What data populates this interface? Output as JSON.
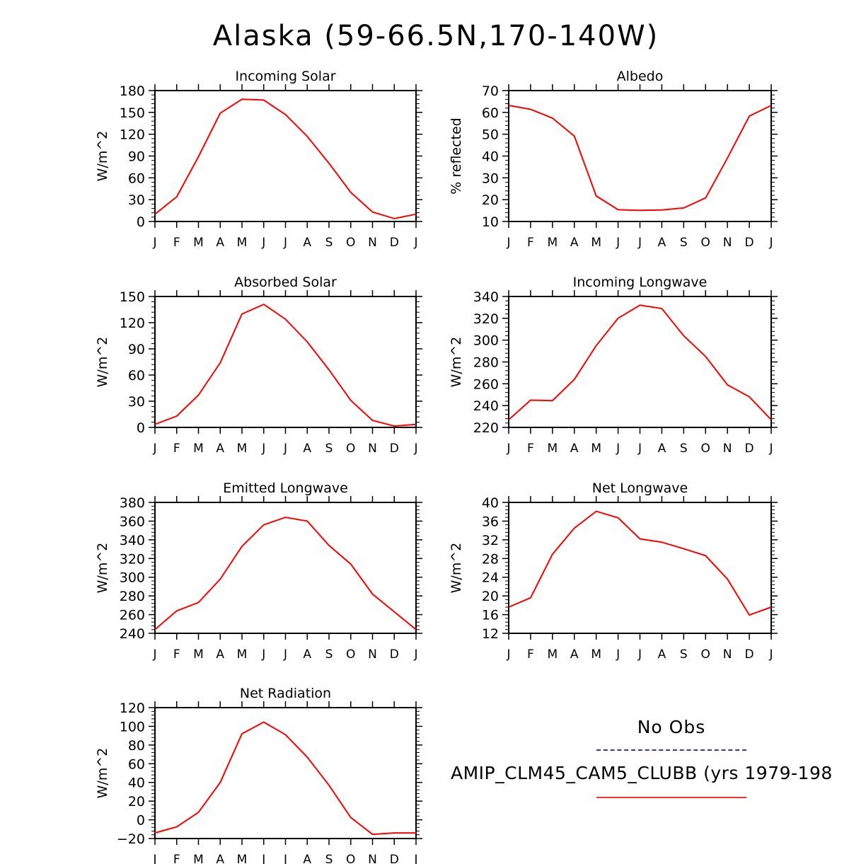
{
  "title": "Alaska (59-66.5N,170-140W)",
  "months": [
    "J",
    "F",
    "M",
    "A",
    "M",
    "J",
    "J",
    "A",
    "S",
    "O",
    "N",
    "D",
    "J"
  ],
  "legend": {
    "obs_label": "No Obs",
    "obs_color": "#3333cc",
    "model_label": "AMIP_CLM45_CAM5_CLUBB (yrs 1979-198",
    "model_color": "#ff0000"
  },
  "chart_data": [
    {
      "type": "line",
      "title": "Incoming Solar",
      "ylabel": "W/m^2",
      "ylim": [
        0,
        180
      ],
      "yticks": [
        0,
        30,
        60,
        90,
        120,
        150,
        180
      ],
      "x": [
        "J",
        "F",
        "M",
        "A",
        "M",
        "J",
        "J",
        "A",
        "S",
        "O",
        "N",
        "D",
        "J"
      ],
      "values": [
        10,
        34,
        89,
        149,
        168,
        167,
        147,
        117,
        80,
        40,
        13,
        4,
        10
      ]
    },
    {
      "type": "line",
      "title": "Albedo",
      "ylabel": "% reflected",
      "ylim": [
        10,
        70
      ],
      "yticks": [
        10,
        20,
        30,
        40,
        50,
        60,
        70
      ],
      "x": [
        "J",
        "F",
        "M",
        "A",
        "M",
        "J",
        "J",
        "A",
        "S",
        "O",
        "N",
        "D",
        "J"
      ],
      "values": [
        63.2,
        61.4,
        57.4,
        49.1,
        21.7,
        15.4,
        15.1,
        15.3,
        16.2,
        20.8,
        39.1,
        58.3,
        63.2
      ]
    },
    {
      "type": "line",
      "title": "Absorbed Solar",
      "ylabel": "W/m^2",
      "ylim": [
        0,
        150
      ],
      "yticks": [
        0,
        30,
        60,
        90,
        120,
        150
      ],
      "x": [
        "J",
        "F",
        "M",
        "A",
        "M",
        "J",
        "J",
        "A",
        "S",
        "O",
        "N",
        "D",
        "J"
      ],
      "values": [
        3.5,
        13,
        37,
        74,
        130,
        141,
        124,
        98,
        66,
        31,
        8,
        1.5,
        3.5
      ]
    },
    {
      "type": "line",
      "title": "Incoming Longwave",
      "ylabel": "W/m^2",
      "ylim": [
        220,
        340
      ],
      "yticks": [
        220,
        240,
        260,
        280,
        300,
        320,
        340
      ],
      "x": [
        "J",
        "F",
        "M",
        "A",
        "M",
        "J",
        "J",
        "A",
        "S",
        "O",
        "N",
        "D",
        "J"
      ],
      "values": [
        227,
        245,
        244.5,
        264,
        295,
        320,
        332,
        329,
        304,
        285,
        259,
        248,
        227
      ]
    },
    {
      "type": "line",
      "title": "Emitted Longwave",
      "ylabel": "W/m^2",
      "ylim": [
        240,
        380
      ],
      "yticks": [
        240,
        260,
        280,
        300,
        320,
        340,
        360,
        380
      ],
      "x": [
        "J",
        "F",
        "M",
        "A",
        "M",
        "J",
        "J",
        "A",
        "S",
        "O",
        "N",
        "D",
        "J"
      ],
      "values": [
        244,
        264,
        273,
        298,
        333,
        356,
        364,
        360,
        334,
        314,
        282,
        263,
        244
      ]
    },
    {
      "type": "line",
      "title": "Net Longwave",
      "ylabel": "W/m^2",
      "ylim": [
        12,
        40
      ],
      "yticks": [
        12,
        16,
        20,
        24,
        28,
        32,
        36,
        40
      ],
      "x": [
        "J",
        "F",
        "M",
        "A",
        "M",
        "J",
        "J",
        "A",
        "S",
        "O",
        "N",
        "D",
        "J"
      ],
      "values": [
        17.6,
        19.6,
        28.9,
        34.5,
        38.1,
        36.7,
        32.2,
        31.5,
        30.1,
        28.6,
        23.6,
        15.9,
        17.6
      ]
    },
    {
      "type": "line",
      "title": "Net Radiation",
      "ylabel": "W/m^2",
      "ylim": [
        -20,
        120
      ],
      "yticks": [
        -20,
        0,
        20,
        40,
        60,
        80,
        100,
        120
      ],
      "x": [
        "J",
        "F",
        "M",
        "A",
        "M",
        "J",
        "J",
        "A",
        "S",
        "O",
        "N",
        "D",
        "J"
      ],
      "values": [
        -14,
        -7.5,
        8,
        40,
        92,
        104.5,
        91,
        67,
        37,
        2.5,
        -15.5,
        -14,
        -14
      ]
    }
  ]
}
